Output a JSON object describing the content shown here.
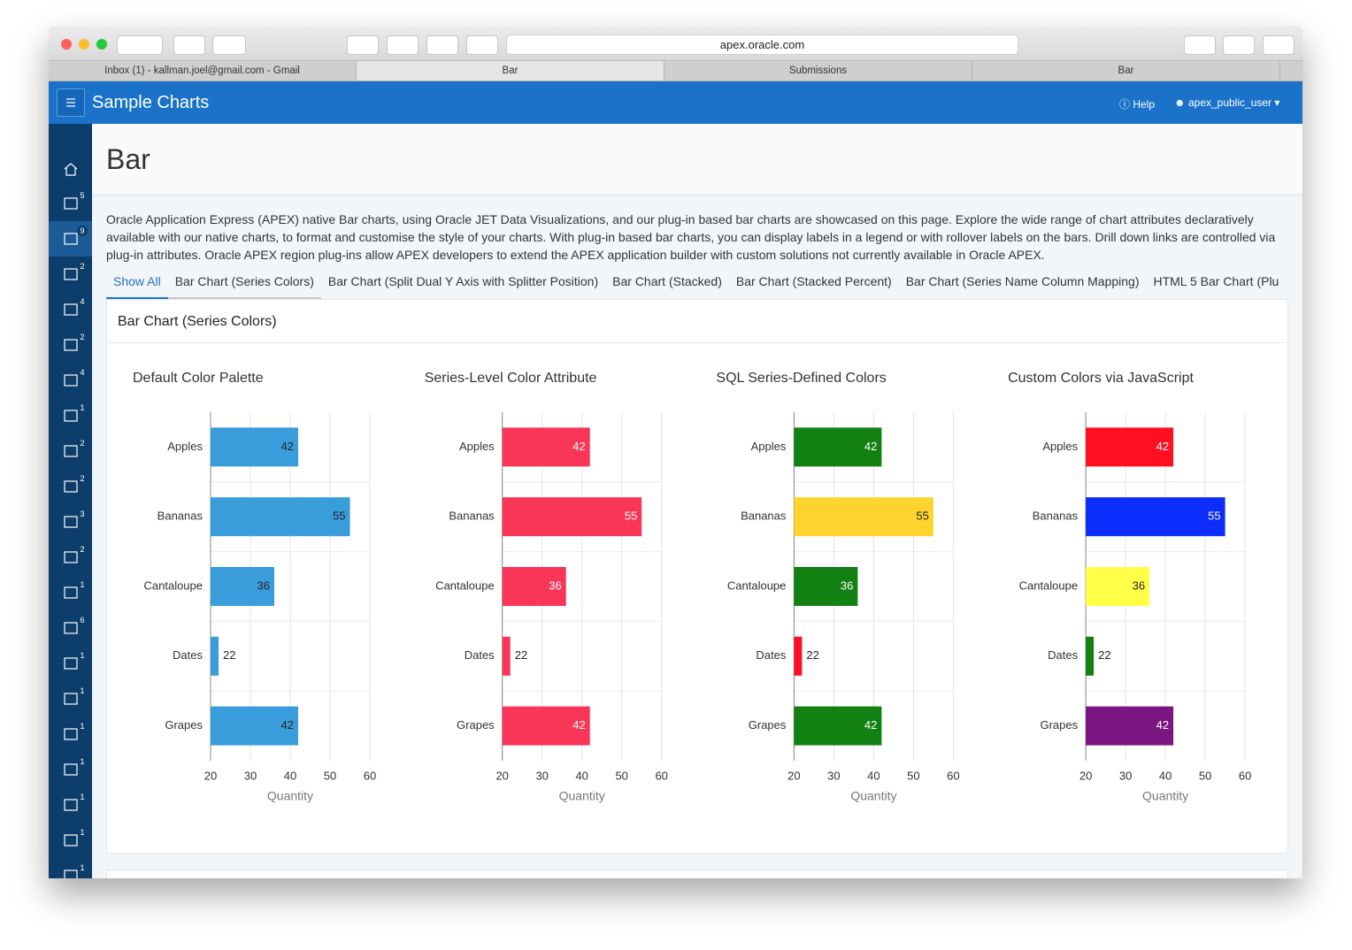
{
  "browser": {
    "url": "apex.oracle.com",
    "tabs": [
      "Inbox (1) - kallman.joel@gmail.com - Gmail",
      "Bar",
      "Submissions",
      "Bar"
    ]
  },
  "app": {
    "title": "Sample Charts",
    "help": "Help",
    "user": "apex_public_user",
    "nav_badges": [
      5,
      9,
      2,
      4,
      2,
      4,
      1,
      2,
      2,
      3,
      2,
      1,
      6,
      1,
      1,
      1,
      1,
      1,
      1,
      1
    ]
  },
  "page": {
    "title": "Bar",
    "description": "Oracle Application Express (APEX) native Bar charts, using Oracle JET Data Visualizations, and our plug-in based bar charts are showcased on this page. Explore the wide range of chart attributes declaratively available with our native charts, to format and customise the style of your charts. With plug-in based bar charts, you can display labels in a legend or with rollover labels on the bars. Drill down links are controlled via plug-in attributes. Oracle APEX region plug-ins allow APEX developers to extend the APEX application builder with custom solutions not currently available in Oracle APEX.",
    "tabs": [
      "Show All",
      "Bar Chart (Series Colors)",
      "Bar Chart (Split Dual Y Axis with Splitter Position)",
      "Bar Chart (Stacked)",
      "Bar Chart (Stacked Percent)",
      "Bar Chart (Series Name Column Mapping)",
      "HTML 5 Bar Chart (Plu"
    ],
    "region_title": "Bar Chart (Series Colors)"
  },
  "chart_data": [
    {
      "type": "bar",
      "orientation": "horizontal",
      "title": "Default Color Palette",
      "categories": [
        "Apples",
        "Bananas",
        "Cantaloupe",
        "Dates",
        "Grapes"
      ],
      "values": [
        42,
        55,
        36,
        22,
        42
      ],
      "color": "#3a9ddb",
      "xlabel": "Quantity",
      "xlim": [
        20,
        60
      ],
      "xticks": [
        20,
        30,
        40,
        50,
        60
      ],
      "grid": true
    },
    {
      "type": "bar",
      "orientation": "horizontal",
      "title": "Series-Level Color Attribute",
      "categories": [
        "Apples",
        "Bananas",
        "Cantaloupe",
        "Dates",
        "Grapes"
      ],
      "values": [
        42,
        55,
        36,
        22,
        42
      ],
      "color": "#f93657",
      "xlabel": "Quantity",
      "xlim": [
        20,
        60
      ],
      "xticks": [
        20,
        30,
        40,
        50,
        60
      ],
      "grid": true
    },
    {
      "type": "bar",
      "orientation": "horizontal",
      "title": "SQL Series-Defined Colors",
      "categories": [
        "Apples",
        "Bananas",
        "Cantaloupe",
        "Dates",
        "Grapes"
      ],
      "values": [
        42,
        55,
        36,
        22,
        42
      ],
      "colors": [
        "#128012",
        "#ffd42f",
        "#128012",
        "#ff0d22",
        "#128012"
      ],
      "xlabel": "Quantity",
      "xlim": [
        20,
        60
      ],
      "xticks": [
        20,
        30,
        40,
        50,
        60
      ],
      "grid": true
    },
    {
      "type": "bar",
      "orientation": "horizontal",
      "title": "Custom Colors via JavaScript",
      "categories": [
        "Apples",
        "Bananas",
        "Cantaloupe",
        "Dates",
        "Grapes"
      ],
      "values": [
        42,
        55,
        36,
        22,
        42
      ],
      "colors": [
        "#ff1020",
        "#0c2dfc",
        "#ffff48",
        "#128012",
        "#7b1580"
      ],
      "xlabel": "Quantity",
      "xlim": [
        20,
        60
      ],
      "xticks": [
        20,
        30,
        40,
        50,
        60
      ],
      "grid": true
    }
  ]
}
